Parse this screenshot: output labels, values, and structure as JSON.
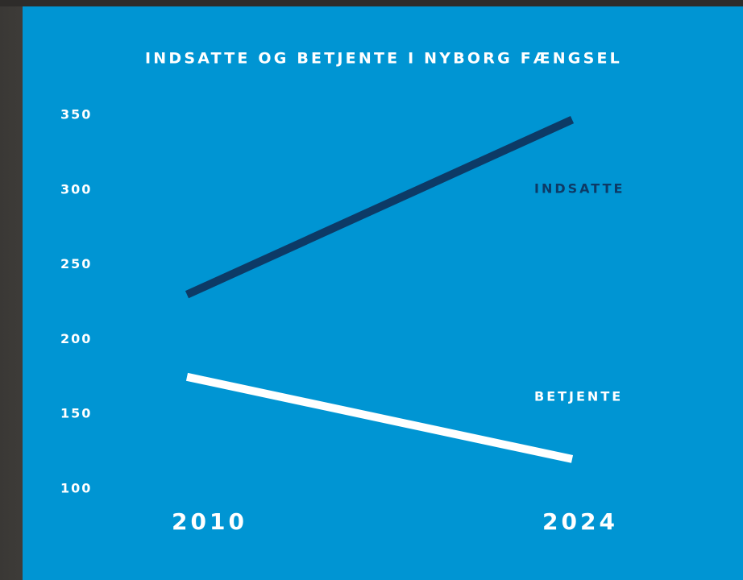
{
  "chart_data": {
    "type": "line",
    "title": "INDSATTE OG BETJENTE I NYBORG FÆNGSEL",
    "categories": [
      "2010",
      "2024"
    ],
    "series": [
      {
        "name": "INDSATTE",
        "color": "#0d3a66",
        "values": [
          230,
          347
        ]
      },
      {
        "name": "BETJENTE",
        "color": "#ffffff",
        "values": [
          175,
          120
        ]
      }
    ],
    "ylim": [
      100,
      350
    ],
    "yticks": [
      100,
      150,
      200,
      250,
      300,
      350
    ],
    "grid": false
  }
}
